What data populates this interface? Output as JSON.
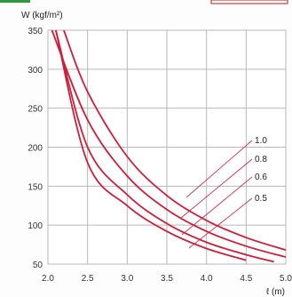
{
  "chart_data": {
    "type": "line",
    "title": "",
    "ylabel": "W (kgf/m²)",
    "xlabel": "ℓ (m)",
    "xlim": [
      2.0,
      5.0
    ],
    "ylim": [
      50,
      350
    ],
    "xticks": [
      "2.0",
      "2.5",
      "3.0",
      "3.5",
      "4.0",
      "4.5",
      "5.0"
    ],
    "yticks": [
      "50",
      "100",
      "150",
      "200",
      "250",
      "300",
      "350"
    ],
    "grid": true,
    "line_color": "#cc1f3a",
    "series": [
      {
        "name": "1.0",
        "x": [
          2.2,
          2.5,
          3.0,
          3.5,
          4.0,
          4.5,
          5.0
        ],
        "values": [
          350,
          271,
          188,
          138,
          106,
          84,
          68
        ]
      },
      {
        "name": "0.8",
        "x": [
          2.05,
          2.5,
          3.0,
          3.5,
          4.0,
          4.5,
          5.0
        ],
        "values": [
          350,
          235,
          163,
          120,
          92,
          73,
          59
        ]
      },
      {
        "name": "0.6",
        "x": [
          2.1,
          2.5,
          3.0,
          3.5,
          4.0,
          4.5,
          4.85
        ],
        "values": [
          350,
          200,
          139,
          102,
          78,
          62,
          53
        ]
      },
      {
        "name": "0.5",
        "x": [
          2.1,
          2.5,
          3.0,
          3.5,
          4.0,
          4.5
        ],
        "values": [
          350,
          180,
          125,
          92,
          70,
          55
        ]
      }
    ]
  }
}
